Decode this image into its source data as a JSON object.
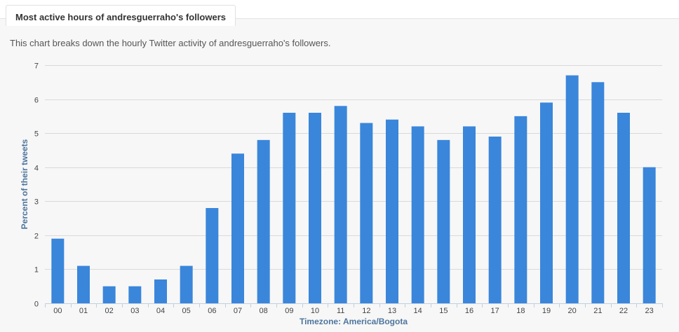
{
  "tab_title": "Most active hours of andresguerraho's followers",
  "subtitle": "This chart breaks down the hourly Twitter activity of andresguerraho's followers.",
  "colors": {
    "bar": "#3a86db",
    "axis_title": "#4d759e"
  },
  "chart_data": {
    "type": "bar",
    "title": "",
    "xlabel": "Timezone: America/Bogota",
    "ylabel": "Percent of their tweets",
    "ylim": [
      0,
      7
    ],
    "yticks": [
      "0",
      "1",
      "2",
      "3",
      "4",
      "5",
      "6",
      "7"
    ],
    "categories": [
      "00",
      "01",
      "02",
      "03",
      "04",
      "05",
      "06",
      "07",
      "08",
      "09",
      "10",
      "11",
      "12",
      "13",
      "14",
      "15",
      "16",
      "17",
      "18",
      "19",
      "20",
      "21",
      "22",
      "23"
    ],
    "values": [
      1.9,
      1.1,
      0.5,
      0.5,
      0.7,
      1.1,
      2.8,
      4.4,
      4.8,
      5.6,
      5.6,
      5.8,
      5.3,
      5.4,
      5.2,
      4.8,
      5.2,
      4.9,
      5.5,
      5.9,
      6.7,
      6.5,
      5.6,
      4.0
    ],
    "grid": true,
    "legend": "none"
  }
}
